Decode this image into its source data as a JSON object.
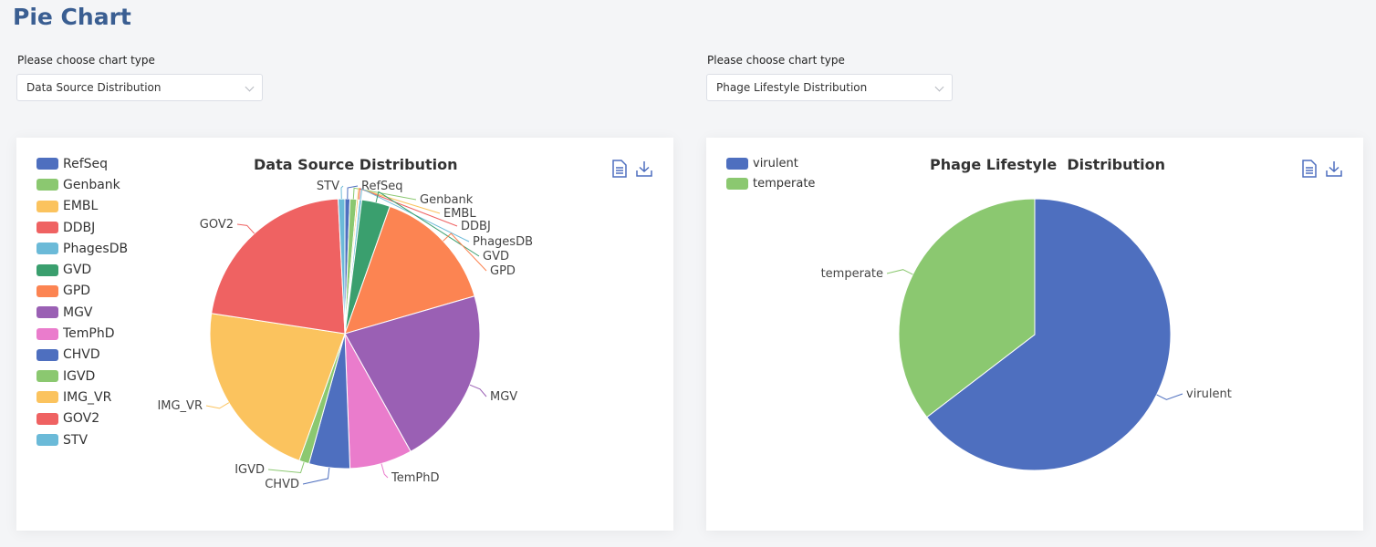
{
  "page": {
    "title": "Pie Chart"
  },
  "selectors": [
    {
      "label": "Please choose chart type",
      "value": "Data Source Distribution"
    },
    {
      "label": "Please choose chart type",
      "value": "Phage Lifestyle Distribution"
    }
  ],
  "colors": {
    "palette": [
      "#4e6fbf",
      "#8bc870",
      "#fbc35e",
      "#ef6262",
      "#6bbad8",
      "#3a9f6e",
      "#fc8452",
      "#9a60b4",
      "#ea7ccc",
      "#4e6fbf",
      "#8bc870",
      "#fbc35e",
      "#ef6262",
      "#6bbad8"
    ],
    "lifestyle": [
      "#4e6fbf",
      "#8bc870"
    ]
  },
  "toolbox": {
    "data_view": "document-icon",
    "save": "download-icon"
  },
  "chart_data": [
    {
      "type": "pie",
      "title": "Data Source Distribution",
      "legend_position": "top-left",
      "categories": [
        "RefSeq",
        "Genbank",
        "EMBL",
        "DDBJ",
        "PhagesDB",
        "GVD",
        "GPD",
        "MGV",
        "TemPhD",
        "CHVD",
        "IGVD",
        "IMG_VR",
        "GOV2",
        "STV"
      ],
      "values": [
        0.6,
        0.8,
        0.2,
        0.1,
        0.3,
        3.4,
        15.1,
        21.4,
        7.5,
        4.9,
        1.2,
        21.9,
        21.8,
        0.8
      ]
    },
    {
      "type": "pie",
      "title": "Phage Lifestyle  Distribution",
      "legend_position": "top-left",
      "categories": [
        "virulent",
        "temperate"
      ],
      "values": [
        64.6,
        35.4
      ]
    }
  ]
}
